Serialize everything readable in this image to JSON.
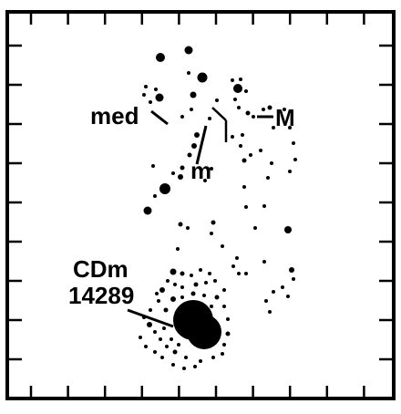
{
  "labels": {
    "med": "med",
    "m": "m",
    "M": "M",
    "cdm_line1": "CDm",
    "cdm_line2": "14289"
  },
  "colors": {
    "ink": "#000000",
    "paper": "#ffffff"
  }
}
